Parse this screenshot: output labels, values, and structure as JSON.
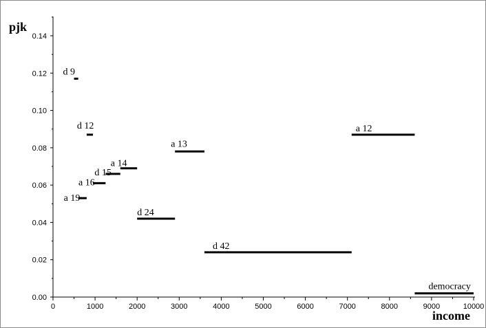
{
  "chart_data": {
    "type": "line",
    "title": "",
    "xlabel": "income",
    "ylabel": "pjk",
    "xlim": [
      0,
      10000
    ],
    "ylim": [
      0,
      0.15
    ],
    "grid": false,
    "x_ticks": [
      "0",
      "1000",
      "2000",
      "3000",
      "4000",
      "5000",
      "6000",
      "7000",
      "8000",
      "9000",
      "10000"
    ],
    "y_ticks": [
      "0.00",
      "0.02",
      "0.04",
      "0.06",
      "0.08",
      "0.10",
      "0.12",
      "0.14"
    ],
    "x_tick_values": [
      0,
      1000,
      2000,
      3000,
      4000,
      5000,
      6000,
      7000,
      8000,
      9000,
      10000
    ],
    "y_tick_values": [
      0,
      0.02,
      0.04,
      0.06,
      0.08,
      0.1,
      0.12,
      0.14
    ],
    "segments": [
      {
        "label": "d 9",
        "x_start": 500,
        "x_end": 600,
        "y": 0.117
      },
      {
        "label": "d 12",
        "x_start": 800,
        "x_end": 950,
        "y": 0.087
      },
      {
        "label": "a 19",
        "x_start": 600,
        "x_end": 800,
        "y": 0.053
      },
      {
        "label": "a 16",
        "x_start": 950,
        "x_end": 1250,
        "y": 0.061
      },
      {
        "label": "d 15",
        "x_start": 1250,
        "x_end": 1600,
        "y": 0.066
      },
      {
        "label": "a 14",
        "x_start": 1600,
        "x_end": 2000,
        "y": 0.069
      },
      {
        "label": "d 24",
        "x_start": 2000,
        "x_end": 2900,
        "y": 0.042
      },
      {
        "label": "a 13",
        "x_start": 2900,
        "x_end": 3600,
        "y": 0.078
      },
      {
        "label": "d 42",
        "x_start": 3600,
        "x_end": 7100,
        "y": 0.024
      },
      {
        "label": "a 12",
        "x_start": 7100,
        "x_end": 8600,
        "y": 0.087
      },
      {
        "label": "democracy",
        "x_start": 8600,
        "x_end": 10000,
        "y": 0.002
      }
    ]
  }
}
